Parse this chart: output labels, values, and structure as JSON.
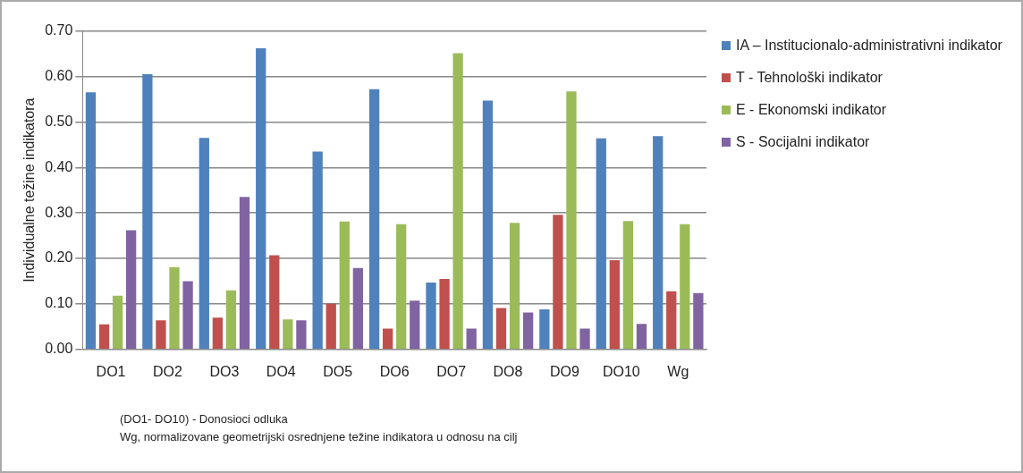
{
  "chart_data": {
    "type": "bar",
    "ylabel": "Individualne težine indikatora",
    "categories": [
      "DO1",
      "DO2",
      "DO3",
      "DO4",
      "DO5",
      "DO6",
      "DO7",
      "DO8",
      "DO9",
      "DO10",
      "Wg"
    ],
    "series": [
      {
        "name": "IA – Institucionalo-administrativni indikator",
        "color": "#4f81bd",
        "values": [
          0.565,
          0.605,
          0.465,
          0.662,
          0.435,
          0.572,
          0.147,
          0.547,
          0.088,
          0.464,
          0.469
        ]
      },
      {
        "name": "T - Tehnološki indikator",
        "color": "#c0504d",
        "values": [
          0.055,
          0.064,
          0.07,
          0.207,
          0.101,
          0.046,
          0.155,
          0.091,
          0.296,
          0.196,
          0.128
        ]
      },
      {
        "name": "E - Ekonomski indikator",
        "color": "#9bbb59",
        "values": [
          0.118,
          0.181,
          0.13,
          0.066,
          0.281,
          0.275,
          0.651,
          0.278,
          0.567,
          0.282,
          0.275
        ]
      },
      {
        "name": "S - Socijalni indikator",
        "color": "#8064a2",
        "values": [
          0.262,
          0.15,
          0.335,
          0.064,
          0.179,
          0.107,
          0.046,
          0.081,
          0.046,
          0.056,
          0.124
        ]
      }
    ],
    "ylim": [
      0,
      0.7
    ],
    "yticks": [
      {
        "value": 0,
        "label": "0.00"
      },
      {
        "value": 0.1,
        "label": "0.10"
      },
      {
        "value": 0.2,
        "label": "0.20"
      },
      {
        "value": 0.3,
        "label": "0.30"
      },
      {
        "value": 0.4,
        "label": "0.40"
      },
      {
        "value": 0.5,
        "label": "0.50"
      },
      {
        "value": 0.6,
        "label": "0.60"
      },
      {
        "value": 0.7,
        "label": "0.70"
      }
    ],
    "grid": "y",
    "legend": "right",
    "annotations": [
      "(DO1- DO10) - Donosioci odluka",
      "Wg, normalizovane geometrijski osrednjene težine indikatora u odnosu na cilj"
    ]
  }
}
